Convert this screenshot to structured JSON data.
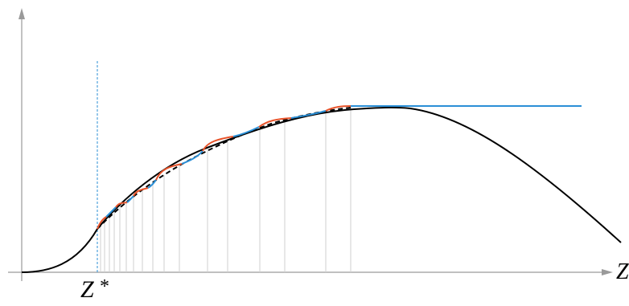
{
  "diagram": {
    "x_axis_label": "Z",
    "marker_label": "Z",
    "marker_superscript": "*",
    "colors": {
      "axis": "#9a9a9a",
      "main_curve": "#000000",
      "approximation": "#000000",
      "marker": "#2b8fd6",
      "segment_a": "#e8532a",
      "segment_b": "#2b8fd6",
      "plateau": "#2b8fd6",
      "grid": "#cfcfcf"
    }
  }
}
